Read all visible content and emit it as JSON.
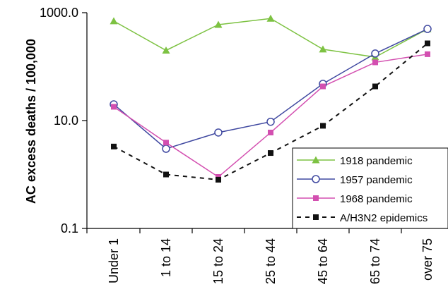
{
  "chart_data": {
    "type": "line",
    "ylabel": "AC excess deaths / 100,000",
    "yscale": "log",
    "ylim": [
      0.1,
      1000
    ],
    "yticks": [
      {
        "value": 0.1,
        "label": "0.1"
      },
      {
        "value": 10,
        "label": "10.0"
      },
      {
        "value": 1000,
        "label": "1000.0"
      }
    ],
    "categories": [
      "Under 1",
      "1 to 14",
      "15 to 24",
      "25 to 44",
      "45 to 64",
      "65 to 74",
      "over 75"
    ],
    "grid": false,
    "legend_position": "bottom-right",
    "series": [
      {
        "name": "1918 pandemic",
        "color": "#7dc242",
        "marker": "triangle",
        "line_style": "solid",
        "values": [
          700,
          200,
          600,
          780,
          210,
          150,
          500
        ]
      },
      {
        "name": "1957 pandemic",
        "color": "#3f48a0",
        "marker": "circle-open",
        "line_style": "solid",
        "values": [
          20,
          3.0,
          6.0,
          9.5,
          48,
          175,
          500
        ]
      },
      {
        "name": "1968 pandemic",
        "color": "#d34fb0",
        "marker": "square",
        "line_style": "solid",
        "values": [
          18,
          3.9,
          0.9,
          6.0,
          43,
          120,
          170
        ]
      },
      {
        "name": "A/H3N2 epidemics",
        "color": "#111111",
        "marker": "square",
        "line_style": "dashed",
        "values": [
          3.3,
          1.0,
          0.8,
          2.5,
          8.0,
          43,
          270
        ]
      }
    ]
  }
}
